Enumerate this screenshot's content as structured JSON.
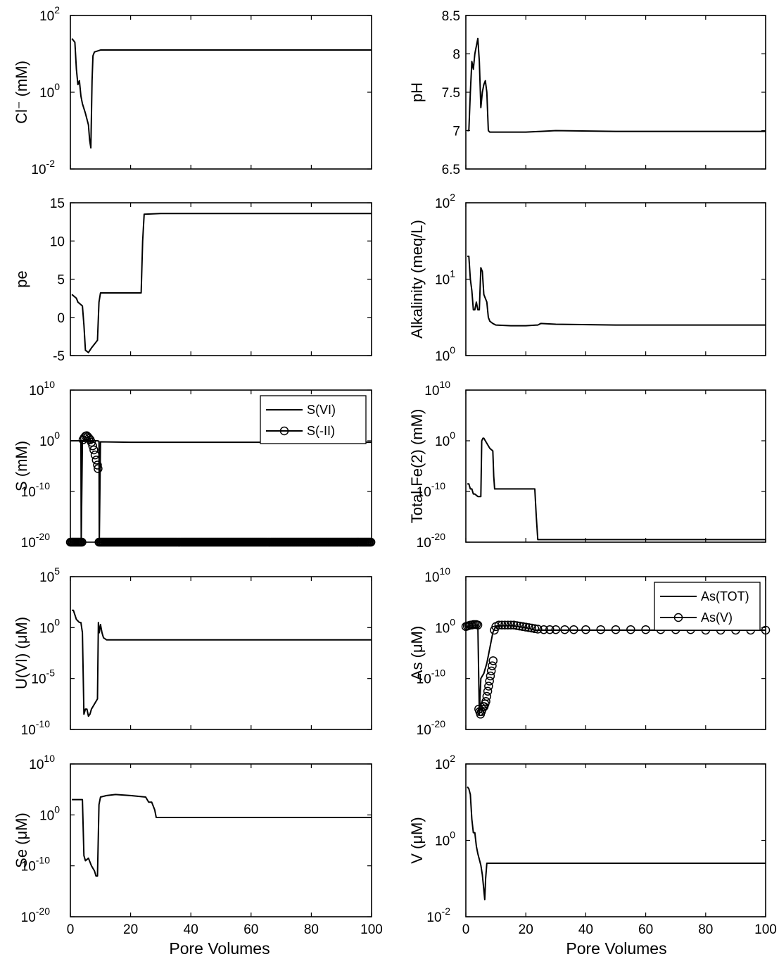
{
  "figure": {
    "xlabel": "Pore Volumes"
  },
  "chart_data": [
    {
      "type": "line",
      "ylabel": "Cl⁻ (mM)",
      "yscale": "log",
      "xlim": [
        0,
        100
      ],
      "ylim_exp": [
        -2,
        2
      ],
      "yticks": [
        {
          "label": "10",
          "exp": "2"
        },
        {
          "label": "10",
          "exp": "0"
        },
        {
          "label": "10",
          "exp": "-2"
        }
      ],
      "xticks": [],
      "series": [
        {
          "style": "line",
          "x": [
            0.5,
            1,
            1.5,
            2,
            2.5,
            3,
            3.5,
            4,
            5,
            6,
            6.4,
            6.8,
            7.2,
            7.5,
            8,
            10,
            20,
            50,
            100
          ],
          "y_exp": [
            1.4,
            1.35,
            1.3,
            0.6,
            0.2,
            0.3,
            -0.1,
            -0.3,
            -0.55,
            -0.85,
            -1.25,
            -1.45,
            0.3,
            0.95,
            1.05,
            1.1,
            1.1,
            1.1,
            1.1
          ]
        }
      ]
    },
    {
      "type": "line",
      "ylabel": "pH",
      "yscale": "linear",
      "xlim": [
        0,
        100
      ],
      "ylim": [
        6.5,
        8.5
      ],
      "yticks": [
        {
          "label": "8.5",
          "v": 8.5
        },
        {
          "label": "8",
          "v": 8
        },
        {
          "label": "7.5",
          "v": 7.5
        },
        {
          "label": "7",
          "v": 7
        },
        {
          "label": "6.5",
          "v": 6.5
        }
      ],
      "xticks": [],
      "series": [
        {
          "style": "line",
          "x": [
            0.5,
            1,
            1.5,
            2,
            2.5,
            3,
            3.5,
            4,
            4.5,
            5,
            5.5,
            6,
            6.5,
            7,
            7.5,
            8,
            10,
            20,
            25,
            30,
            50,
            100
          ],
          "y": [
            7.0,
            7.0,
            7.5,
            7.9,
            7.8,
            8.0,
            8.1,
            8.2,
            7.9,
            7.3,
            7.5,
            7.6,
            7.65,
            7.5,
            7.0,
            6.98,
            6.98,
            6.98,
            6.99,
            7.0,
            6.99,
            6.99
          ]
        }
      ]
    },
    {
      "type": "line",
      "ylabel": "pe",
      "yscale": "linear",
      "xlim": [
        0,
        100
      ],
      "ylim": [
        -5,
        15
      ],
      "yticks": [
        {
          "label": "15",
          "v": 15
        },
        {
          "label": "10",
          "v": 10
        },
        {
          "label": "5",
          "v": 5
        },
        {
          "label": "0",
          "v": 0
        },
        {
          "label": "-5",
          "v": -5
        }
      ],
      "xticks": [],
      "series": [
        {
          "style": "line",
          "x": [
            0.5,
            2,
            2.5,
            4,
            4.5,
            5,
            6,
            7,
            8,
            9,
            9.5,
            10,
            20,
            23.5,
            24,
            24.5,
            30,
            50,
            100
          ],
          "y": [
            3,
            2.5,
            2,
            1.5,
            -1,
            -4.3,
            -4.6,
            -4,
            -3.5,
            -3,
            2,
            3.2,
            3.2,
            3.2,
            10,
            13.5,
            13.6,
            13.6,
            13.6
          ]
        }
      ]
    },
    {
      "type": "line",
      "ylabel": "Alkalinity (meq/L)",
      "yscale": "log",
      "xlim": [
        0,
        100
      ],
      "ylim_exp": [
        0,
        2
      ],
      "yticks": [
        {
          "label": "10",
          "exp": "2"
        },
        {
          "label": "10",
          "exp": "1"
        },
        {
          "label": "10",
          "exp": "0"
        }
      ],
      "xticks": [],
      "series": [
        {
          "style": "line",
          "x": [
            0.5,
            1,
            1.5,
            2,
            2.5,
            3,
            3.5,
            4,
            4.5,
            5,
            5.5,
            6,
            6.5,
            7,
            7.5,
            8,
            9,
            10,
            15,
            20,
            24,
            25,
            30,
            50,
            100
          ],
          "y_exp": [
            1.3,
            1.3,
            1.0,
            0.85,
            0.6,
            0.6,
            0.7,
            0.6,
            0.6,
            1.15,
            1.1,
            0.8,
            0.75,
            0.7,
            0.5,
            0.45,
            0.42,
            0.4,
            0.39,
            0.39,
            0.4,
            0.42,
            0.41,
            0.4,
            0.4
          ]
        }
      ]
    },
    {
      "type": "line",
      "ylabel": "S (mM)",
      "yscale": "log",
      "xlim": [
        0,
        100
      ],
      "ylim_exp": [
        -20,
        10
      ],
      "yticks": [
        {
          "label": "10",
          "exp": "10"
        },
        {
          "label": "10",
          "exp": "0"
        },
        {
          "label": "10",
          "exp": "-10"
        },
        {
          "label": "10",
          "exp": "-20"
        }
      ],
      "xticks": [],
      "legend": {
        "position": "top-right",
        "entries": [
          {
            "name": "S(VI)",
            "marker": "none"
          },
          {
            "name": "S(-II)",
            "marker": "circle"
          }
        ]
      },
      "series": [
        {
          "name": "S(VI)",
          "style": "line",
          "x": [
            0,
            1,
            2,
            3,
            3.5,
            3.6,
            4,
            5,
            6,
            8,
            9,
            9.5,
            9.6,
            10,
            20,
            50,
            100
          ],
          "y_exp": [
            0,
            0,
            0,
            0,
            0,
            -20,
            0,
            0,
            0,
            0,
            0,
            -0.1,
            -20,
            -0.2,
            -0.3,
            -0.3,
            -0.3
          ]
        },
        {
          "name": "S(-II)",
          "style": "markers",
          "x_range_low": [
            0,
            4
          ],
          "x_range_high": [
            9.5,
            100
          ],
          "y_exp_low": -20,
          "peak_x": [
            4.2,
            4.6,
            5,
            5.4,
            5.8,
            6.2,
            6.6,
            7,
            7.4,
            7.8,
            8.2,
            8.6,
            9,
            9.2
          ],
          "peak_y_exp": [
            0.2,
            0.6,
            0.9,
            1,
            0.8,
            0.5,
            0.2,
            -0.3,
            -1,
            -1.8,
            -2.8,
            -3.8,
            -4.8,
            -5.5
          ]
        }
      ]
    },
    {
      "type": "line",
      "ylabel": "Total Fe(2) (mM)",
      "yscale": "log",
      "xlim": [
        0,
        100
      ],
      "ylim_exp": [
        -20,
        10
      ],
      "yticks": [
        {
          "label": "10",
          "exp": "10"
        },
        {
          "label": "10",
          "exp": "0"
        },
        {
          "label": "10",
          "exp": "-10"
        },
        {
          "label": "10",
          "exp": "-20"
        }
      ],
      "xticks": [],
      "series": [
        {
          "style": "line",
          "x": [
            0.5,
            1,
            1.5,
            2,
            2.5,
            3,
            4,
            5,
            5.3,
            5.7,
            6,
            7,
            8,
            9,
            9.3,
            9.6,
            10,
            20,
            23,
            23.5,
            24,
            30,
            50,
            100
          ],
          "y_exp": [
            -8.5,
            -8.5,
            -9.5,
            -9.5,
            -10.5,
            -10.5,
            -11,
            -11,
            0,
            0.5,
            0.5,
            -0.5,
            -1.5,
            -2,
            -7,
            -9.5,
            -9.5,
            -9.5,
            -9.5,
            -15,
            -19.5,
            -19.5,
            -19.5,
            -19.5
          ]
        }
      ]
    },
    {
      "type": "line",
      "ylabel": "U(VI) (μM)",
      "yscale": "log",
      "xlim": [
        0,
        100
      ],
      "ylim_exp": [
        -10,
        5
      ],
      "yticks": [
        {
          "label": "10",
          "exp": "5"
        },
        {
          "label": "10",
          "exp": "0"
        },
        {
          "label": "10",
          "exp": "-5"
        },
        {
          "label": "10",
          "exp": "-10"
        }
      ],
      "xticks": [],
      "series": [
        {
          "style": "line",
          "x": [
            0.5,
            1,
            2,
            3,
            3.5,
            4,
            4.5,
            5,
            5.5,
            6,
            6.5,
            7,
            8,
            9,
            9.3,
            9.6,
            10,
            10.5,
            11,
            12,
            20,
            50,
            100
          ],
          "y_exp": [
            1.7,
            1.7,
            0.8,
            0.5,
            0.5,
            -0.5,
            -8.5,
            -8,
            -8,
            -8.7,
            -8.5,
            -8,
            -7.5,
            -7,
            0.5,
            -0.5,
            0.3,
            -0.5,
            -1,
            -1.2,
            -1.2,
            -1.2,
            -1.2
          ]
        }
      ]
    },
    {
      "type": "line",
      "ylabel": "As (μM)",
      "yscale": "log",
      "xlim": [
        0,
        100
      ],
      "ylim_exp": [
        -20,
        10
      ],
      "yticks": [
        {
          "label": "10",
          "exp": "10"
        },
        {
          "label": "10",
          "exp": "0"
        },
        {
          "label": "10",
          "exp": "-10"
        },
        {
          "label": "10",
          "exp": "-20"
        }
      ],
      "xticks": [],
      "legend": {
        "position": "top-right",
        "entries": [
          {
            "name": "As(TOT)",
            "marker": "none"
          },
          {
            "name": "As(V)",
            "marker": "circle"
          }
        ]
      },
      "series": [
        {
          "name": "As(TOT)",
          "style": "line",
          "x": [
            0,
            1,
            2,
            3,
            4,
            4.5,
            5,
            6,
            7,
            8,
            9,
            10,
            15,
            20,
            23,
            25,
            50,
            100
          ],
          "y_exp": [
            0.2,
            0.3,
            0.5,
            0.5,
            0.5,
            -17,
            -10,
            -9,
            -7,
            -4,
            -1,
            0.3,
            0.4,
            0,
            -0.5,
            -0.5,
            -0.5,
            -0.5
          ]
        },
        {
          "name": "As(V)",
          "style": "markers",
          "x": [
            0,
            0.5,
            1,
            1.5,
            2,
            2.5,
            3,
            3.5,
            4,
            4.3,
            4.6,
            4.9,
            5.2,
            5.5,
            5.8,
            6.1,
            6.4,
            6.7,
            7,
            7.3,
            7.6,
            7.9,
            8.2,
            8.5,
            8.8,
            9.1,
            9.5,
            10,
            11,
            12,
            13,
            14,
            15,
            16,
            17,
            18,
            19,
            20,
            21,
            22,
            23,
            24,
            26,
            28,
            30,
            33,
            36,
            40,
            45,
            50,
            55,
            60,
            65,
            70,
            75,
            80,
            85,
            90,
            95,
            100
          ],
          "y_exp": [
            0.2,
            0.3,
            0.4,
            0.5,
            0.5,
            0.6,
            0.6,
            0.6,
            0.5,
            -16,
            -16.5,
            -17,
            -16.5,
            -16,
            -15.5,
            -15.5,
            -15,
            -14.5,
            -13.5,
            -12.5,
            -11.5,
            -10.5,
            -9.5,
            -8.5,
            -7.5,
            -6.5,
            -0.5,
            0.2,
            0.5,
            0.5,
            0.5,
            0.5,
            0.5,
            0.5,
            0.4,
            0.3,
            0.2,
            0.1,
            0,
            -0.1,
            -0.2,
            -0.3,
            -0.4,
            -0.4,
            -0.4,
            -0.4,
            -0.4,
            -0.4,
            -0.4,
            -0.4,
            -0.4,
            -0.4,
            -0.4,
            -0.4,
            -0.4,
            -0.5,
            -0.5,
            -0.5,
            -0.5,
            -0.5
          ]
        }
      ]
    },
    {
      "type": "line",
      "ylabel": "Se (μM)",
      "yscale": "log",
      "xlim": [
        0,
        100
      ],
      "ylim_exp": [
        -20,
        10
      ],
      "yticks": [
        {
          "label": "10",
          "exp": "10"
        },
        {
          "label": "10",
          "exp": "0"
        },
        {
          "label": "10",
          "exp": "-10"
        },
        {
          "label": "10",
          "exp": "-20"
        }
      ],
      "xticks": [
        {
          "label": "0",
          "v": 0
        },
        {
          "label": "20",
          "v": 20
        },
        {
          "label": "40",
          "v": 40
        },
        {
          "label": "60",
          "v": 60
        },
        {
          "label": "80",
          "v": 80
        },
        {
          "label": "100",
          "v": 100
        }
      ],
      "series": [
        {
          "style": "line",
          "x": [
            0.5,
            2,
            4,
            4.5,
            5,
            6,
            7,
            8,
            8.5,
            9,
            9.5,
            10,
            12,
            15,
            20,
            25,
            26,
            27,
            28,
            28.5,
            30,
            50,
            100
          ],
          "y_exp": [
            3,
            3,
            3,
            -8,
            -9,
            -8.5,
            -10,
            -11,
            -12,
            -12,
            2,
            3.5,
            3.8,
            4,
            3.8,
            3.5,
            2.5,
            2.5,
            1,
            -0.5,
            -0.5,
            -0.5,
            -0.5
          ]
        }
      ]
    },
    {
      "type": "line",
      "ylabel": "V (μM)",
      "yscale": "log",
      "xlim": [
        0,
        100
      ],
      "ylim_exp": [
        -2,
        2
      ],
      "yticks": [
        {
          "label": "10",
          "exp": "2"
        },
        {
          "label": "10",
          "exp": "0"
        },
        {
          "label": "10",
          "exp": "-2"
        }
      ],
      "xticks": [
        {
          "label": "0",
          "v": 0
        },
        {
          "label": "20",
          "v": 20
        },
        {
          "label": "40",
          "v": 40
        },
        {
          "label": "60",
          "v": 60
        },
        {
          "label": "80",
          "v": 80
        },
        {
          "label": "100",
          "v": 100
        }
      ],
      "series": [
        {
          "style": "line",
          "x": [
            0.5,
            1,
            1.5,
            2,
            2.5,
            3,
            3.5,
            4,
            5,
            5.5,
            6,
            6.3,
            6.6,
            7,
            10,
            20,
            50,
            100
          ],
          "y_exp": [
            1.4,
            1.35,
            1.2,
            0.55,
            0.2,
            0.2,
            -0.15,
            -0.35,
            -0.65,
            -0.9,
            -1.3,
            -1.55,
            -1.0,
            -0.6,
            -0.6,
            -0.6,
            -0.6,
            -0.6
          ]
        }
      ]
    }
  ]
}
